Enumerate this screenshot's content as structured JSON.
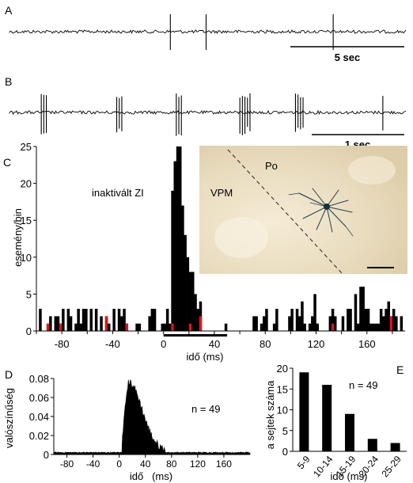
{
  "panels": {
    "a": {
      "label": "A",
      "scale_label": "5 sec"
    },
    "b": {
      "label": "B",
      "scale_label": "1 sec"
    },
    "c": {
      "label": "C",
      "annotation": "inaktivált ZI",
      "ylabel": "esemény/bin",
      "xlabel": "idő (ms)"
    },
    "inset": {
      "vpm_label": "VPM",
      "po_label": "Po"
    },
    "d": {
      "label": "D",
      "ylabel": "valószínűség",
      "xlabel": "idő   (ms)",
      "n_label": "n = 49"
    },
    "e": {
      "label": "E",
      "ylabel": "a sejtek száma",
      "xlabel": "idő (ms)",
      "n_label": "n = 49"
    }
  },
  "colors": {
    "bars": "#000000",
    "highlight": "#e8101a",
    "inset_bg": "#e9dcbf",
    "cell": "#27404a"
  },
  "chart_data": [
    {
      "id": "A",
      "type": "line",
      "title": "",
      "series_kind": "spike train",
      "spike_times_frac": [
        0.405,
        0.495,
        0.815
      ]
    },
    {
      "id": "B",
      "type": "line",
      "title": "",
      "series_kind": "spike train (bursts)",
      "bursts_frac": [
        0.08,
        0.27,
        0.42,
        0.58,
        0.72,
        0.94
      ]
    },
    {
      "id": "C",
      "type": "bar",
      "xlabel": "idő (ms)",
      "ylabel": "esemény/bin",
      "xlim": [
        -100,
        190
      ],
      "ylim": [
        0,
        25
      ],
      "xticks": [
        -80,
        -40,
        0,
        40,
        80,
        120,
        160
      ],
      "yticks": [
        0,
        5,
        10,
        15,
        20,
        25
      ],
      "bin_width": 2,
      "peak_x": [
        6,
        8,
        10,
        12,
        14,
        16,
        18,
        20
      ],
      "peak_values": [
        19,
        23,
        25,
        25,
        17,
        13,
        10,
        8
      ],
      "stimulus_bar_ms": [
        0,
        50
      ],
      "highlight_x": [
        -92,
        -82,
        -60,
        -46,
        -30,
        -18,
        6,
        20,
        28,
        122,
        132,
        178
      ]
    },
    {
      "id": "D",
      "type": "area",
      "xlabel": "idő   (ms)",
      "ylabel": "valószínűség",
      "xlim": [
        -100,
        200
      ],
      "ylim": [
        0,
        0.08
      ],
      "xticks": [
        -80,
        -40,
        0,
        40,
        80,
        120,
        160
      ],
      "yticks": [
        0,
        0.02,
        0.04,
        0.06,
        0.08
      ],
      "peak_x": 15,
      "peak_y": 0.072
    },
    {
      "id": "E",
      "type": "bar",
      "xlabel": "idő (ms)",
      "ylabel": "a sejtek száma",
      "categories": [
        "5-9",
        "10-14",
        "15-19",
        "20-24",
        "25-29"
      ],
      "values": [
        19,
        16,
        9,
        3,
        2
      ],
      "ylim": [
        0,
        20
      ],
      "yticks": [
        0,
        5,
        10,
        15,
        20
      ]
    }
  ]
}
